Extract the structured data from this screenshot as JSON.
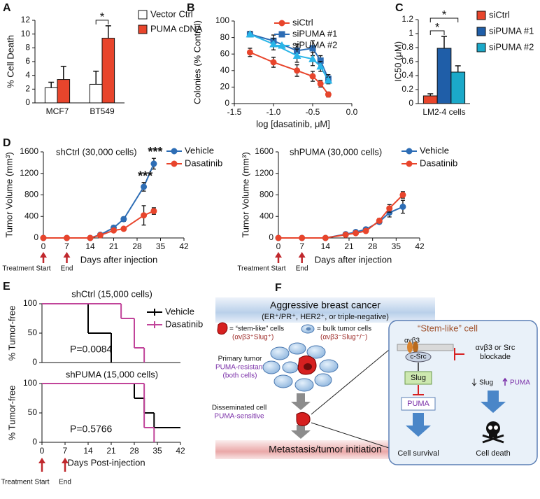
{
  "chart_data": [
    {
      "type": "bar",
      "label": "A",
      "ylabel": "% Cell Death",
      "categories": [
        "MCF7",
        "BT549"
      ],
      "series": [
        {
          "name": "Vector Ctrl",
          "color": "#ffffff",
          "values": [
            2.2,
            2.7
          ],
          "errors": [
            0.8,
            1.9
          ]
        },
        {
          "name": "PUMA cDNA",
          "color": "#e8452c",
          "values": [
            3.4,
            9.4
          ],
          "errors": [
            1.9,
            1.8
          ]
        }
      ],
      "ylim": [
        0,
        12
      ],
      "yticks": [
        0,
        2,
        4,
        6,
        8,
        10,
        12
      ],
      "annotations": [
        "*"
      ]
    },
    {
      "type": "line",
      "label": "B",
      "xlabel": "log [dasatinib, μM]",
      "ylabel": "Colonies (% Control)",
      "x": [
        -1.3,
        -1.0,
        -0.7,
        -0.5,
        -0.4,
        -0.3
      ],
      "series": [
        {
          "name": "siCtrl",
          "color": "#e8452c",
          "marker": "circle",
          "values": [
            62,
            50,
            40,
            33,
            24,
            11
          ],
          "errors": [
            5,
            6,
            7,
            6,
            4,
            3
          ]
        },
        {
          "name": "siPUMA #1",
          "color": "#2d6db5",
          "marker": "square",
          "values": [
            84,
            76,
            64,
            67,
            52,
            30
          ],
          "errors": [
            3,
            7,
            8,
            9,
            6,
            5
          ]
        },
        {
          "name": "siPUMA #2",
          "color": "#29b5e8",
          "marker": "triangle",
          "values": [
            84,
            72,
            58,
            54,
            45,
            28
          ],
          "errors": [
            3,
            7,
            8,
            8,
            6,
            4
          ]
        }
      ],
      "xlim": [
        -1.5,
        0
      ],
      "xticks": [
        -1.5,
        {
          "value": -1,
          "label": "-1.0"
        },
        -0.5,
        {
          "value": 0,
          "label": "0.0"
        }
      ],
      "ylim": [
        0,
        100
      ],
      "yticks": [
        0,
        20,
        40,
        60,
        80,
        100
      ]
    },
    {
      "type": "bar",
      "label": "C",
      "ylabel": "IC50 (μM)",
      "categories": [
        "LM2-4 cells"
      ],
      "series": [
        {
          "name": "siCtrl",
          "color": "#e8452c",
          "values": [
            0.11
          ],
          "errors": [
            0.03
          ]
        },
        {
          "name": "siPUMA #1",
          "color": "#1f5ea8",
          "values": [
            0.79
          ],
          "errors": [
            0.17
          ]
        },
        {
          "name": "siPUMA #2",
          "color": "#1ba9c9",
          "values": [
            0.45
          ],
          "errors": [
            0.09
          ]
        }
      ],
      "ylim": [
        0,
        1.2
      ],
      "yticks": [
        0,
        0.2,
        0.4,
        0.6,
        0.8,
        1,
        1.2
      ],
      "annotations": [
        "*",
        "*"
      ]
    },
    {
      "type": "line",
      "label": "D",
      "title": "shCtrl (30,000 cells)",
      "xlabel": "Days after injection",
      "ylabel": "Tumor Volume (mm³)",
      "x": [
        0,
        7,
        14,
        17,
        21,
        24,
        30,
        33
      ],
      "series": [
        {
          "name": "Vehicle",
          "color": "#2d6db5",
          "marker": "circle",
          "values": [
            0,
            0,
            0,
            60,
            190,
            350,
            950,
            1380
          ],
          "errors": [
            0,
            0,
            0,
            20,
            40,
            40,
            80,
            100
          ]
        },
        {
          "name": "Dasatinib",
          "color": "#e8452c",
          "marker": "circle",
          "values": [
            0,
            0,
            0,
            50,
            140,
            170,
            420,
            500
          ],
          "errors": [
            0,
            0,
            0,
            15,
            30,
            30,
            180,
            60
          ]
        }
      ],
      "xlim": [
        0,
        42
      ],
      "xticks": [
        0,
        7,
        14,
        21,
        28,
        35,
        42
      ],
      "ylim": [
        0,
        1600
      ],
      "yticks": [
        0,
        400,
        800,
        1200,
        1600
      ],
      "annotations": [
        "***",
        "***"
      ],
      "treatment": [
        "Treatment",
        "Start",
        "End"
      ]
    },
    {
      "type": "line",
      "title": "shPUMA (30,000 cells)",
      "xlabel": "Days after injection",
      "ylabel": "Tumor Volume (mm³)",
      "x": [
        0,
        7,
        14,
        20,
        23,
        26,
        30,
        33,
        37
      ],
      "series": [
        {
          "name": "Vehicle",
          "color": "#2d6db5",
          "marker": "circle",
          "values": [
            0,
            0,
            0,
            70,
            110,
            160,
            300,
            470,
            580
          ],
          "errors": [
            0,
            0,
            0,
            15,
            30,
            40,
            40,
            80,
            120
          ]
        },
        {
          "name": "Dasatinib",
          "color": "#e8452c",
          "marker": "circle",
          "values": [
            0,
            0,
            0,
            60,
            90,
            130,
            320,
            550,
            800
          ],
          "errors": [
            0,
            0,
            0,
            15,
            20,
            30,
            40,
            70,
            60
          ]
        }
      ],
      "xlim": [
        0,
        42
      ],
      "xticks": [
        0,
        7,
        14,
        21,
        28,
        35,
        42
      ],
      "ylim": [
        0,
        1600
      ],
      "yticks": [
        0,
        400,
        800,
        1200,
        1600
      ],
      "treatment": [
        "Treatment",
        "Start",
        "End"
      ]
    },
    {
      "type": "step",
      "label": "E",
      "title": "shCtrl (15,000 cells)",
      "ylabel": "% Tumor-free",
      "series": [
        {
          "name": "Vehicle",
          "color": "#000000",
          "x": [
            0,
            14,
            21
          ],
          "values": [
            100,
            50,
            0
          ]
        },
        {
          "name": "Dasatinib",
          "color": "#c1449a",
          "x": [
            0,
            24,
            28,
            31
          ],
          "values": [
            100,
            75,
            25,
            0
          ]
        }
      ],
      "xlim": [
        0,
        42
      ],
      "ylim": [
        0,
        100
      ],
      "yticks": [
        0,
        50,
        100
      ],
      "annotations": [
        "P=0.0084"
      ]
    },
    {
      "type": "step",
      "title": "shPUMA (15,000 cells)",
      "ylabel": "% Tumor-free",
      "xlabel": "Days Post-injection",
      "series": [
        {
          "color": "#000000",
          "x": [
            0,
            28,
            31,
            34
          ],
          "values": [
            100,
            75,
            50,
            25
          ]
        },
        {
          "color": "#c1449a",
          "x": [
            0,
            31,
            34
          ],
          "values": [
            100,
            25,
            0
          ]
        }
      ],
      "xlim": [
        0,
        42
      ],
      "xticks": [
        0,
        7,
        14,
        21,
        28,
        35,
        42
      ],
      "ylim": [
        0,
        100
      ],
      "yticks": [
        0,
        50,
        100
      ],
      "annotations": [
        "P=0.5766"
      ],
      "treatment": [
        "Treatment",
        "Start",
        "End"
      ]
    }
  ],
  "diagram": {
    "label": "F",
    "header": "Aggressive breast cancer",
    "subheader": "(ER⁺/PR⁺, HER2⁺, or triple-negative)",
    "stem_key": "= “stem-like” cells",
    "stem_marker": "(αvβ3⁺Slug⁺)",
    "bulk_key": "= bulk tumor cells",
    "bulk_marker": "(αvβ3⁻Slug⁺/⁻)",
    "primary": "Primary tumor",
    "primary_status": "PUMA-resistant",
    "primary_note": "(both cells)",
    "disseminated": "Disseminated cell",
    "disseminated_status": "PUMA-sensitive",
    "footer": "Metastasis/tumor initiation",
    "inset_title": "“Stem-like” cell",
    "integrin": "αvβ3",
    "src": "c-Src",
    "blockade": "αvβ3 or Src",
    "blockade2": "blockade",
    "slug": "Slug",
    "puma": "PUMA",
    "slug_down": "Slug",
    "puma_up": "PUMA",
    "survival": "Cell survival",
    "death": "Cell death"
  }
}
